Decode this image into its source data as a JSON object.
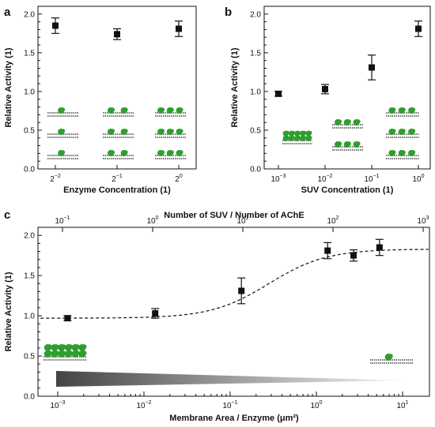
{
  "chart_data": [
    {
      "panel": "a",
      "type": "scatter",
      "xlabel": "Enzyme Concentration (1)",
      "ylabel": "Relative Activity (1)",
      "x_scale": "log2",
      "x_ticks": [
        "2^-2",
        "2^-1",
        "2^0"
      ],
      "ylim": [
        0,
        2.1
      ],
      "y_ticks": [
        "0.0",
        "0.5",
        "1.0",
        "1.5",
        "2.0"
      ],
      "points": [
        {
          "x": 0.25,
          "y": 1.85,
          "err": 0.1
        },
        {
          "x": 0.5,
          "y": 1.74,
          "err": 0.07
        },
        {
          "x": 1.0,
          "y": 1.81,
          "err": 0.1
        }
      ]
    },
    {
      "panel": "b",
      "type": "scatter",
      "xlabel": "SUV Concentration (1)",
      "ylabel": "Relative Activity (1)",
      "x_scale": "log10",
      "x_ticks": [
        "10^-3",
        "10^-2",
        "10^-1",
        "10^0"
      ],
      "ylim": [
        0,
        2.1
      ],
      "y_ticks": [
        "0.0",
        "0.5",
        "1.0",
        "1.5",
        "2.0"
      ],
      "points": [
        {
          "x": 0.001,
          "y": 0.97,
          "err": 0.03
        },
        {
          "x": 0.01,
          "y": 1.03,
          "err": 0.06
        },
        {
          "x": 0.1,
          "y": 1.31,
          "err": 0.16
        },
        {
          "x": 1.0,
          "y": 1.81,
          "err": 0.1
        }
      ]
    },
    {
      "panel": "c",
      "type": "scatter",
      "xlabel": "Membrane Area / Enzyme (μm²)",
      "x2label": "Number of SUV / Number of AChE",
      "ylabel": "Relative Activity (1)",
      "x_scale": "log10",
      "x_ticks": [
        "10^-3",
        "10^-2",
        "10^-1",
        "10^0",
        "10^1"
      ],
      "x2_ticks": [
        "10^-1",
        "10^0",
        "10^1",
        "10^2",
        "10^3"
      ],
      "ylim": [
        0,
        2.1
      ],
      "y_ticks": [
        "0.0",
        "0.5",
        "1.0",
        "1.5",
        "2.0"
      ],
      "points": [
        {
          "x": 0.0013,
          "y": 0.97,
          "err": 0.03
        },
        {
          "x": 0.0135,
          "y": 1.03,
          "err": 0.06
        },
        {
          "x": 0.135,
          "y": 1.31,
          "err": 0.16
        },
        {
          "x": 1.35,
          "y": 1.81,
          "err": 0.1
        },
        {
          "x": 2.7,
          "y": 1.75,
          "err": 0.07
        },
        {
          "x": 5.4,
          "y": 1.85,
          "err": 0.1
        }
      ],
      "fit_curve": "dashed sigmoid fit, lower plateau 0.97, upper plateau 1.83"
    }
  ],
  "colors": {
    "marker": "#111111",
    "enzyme": "#2e9e2e",
    "membrane": "#222222"
  }
}
